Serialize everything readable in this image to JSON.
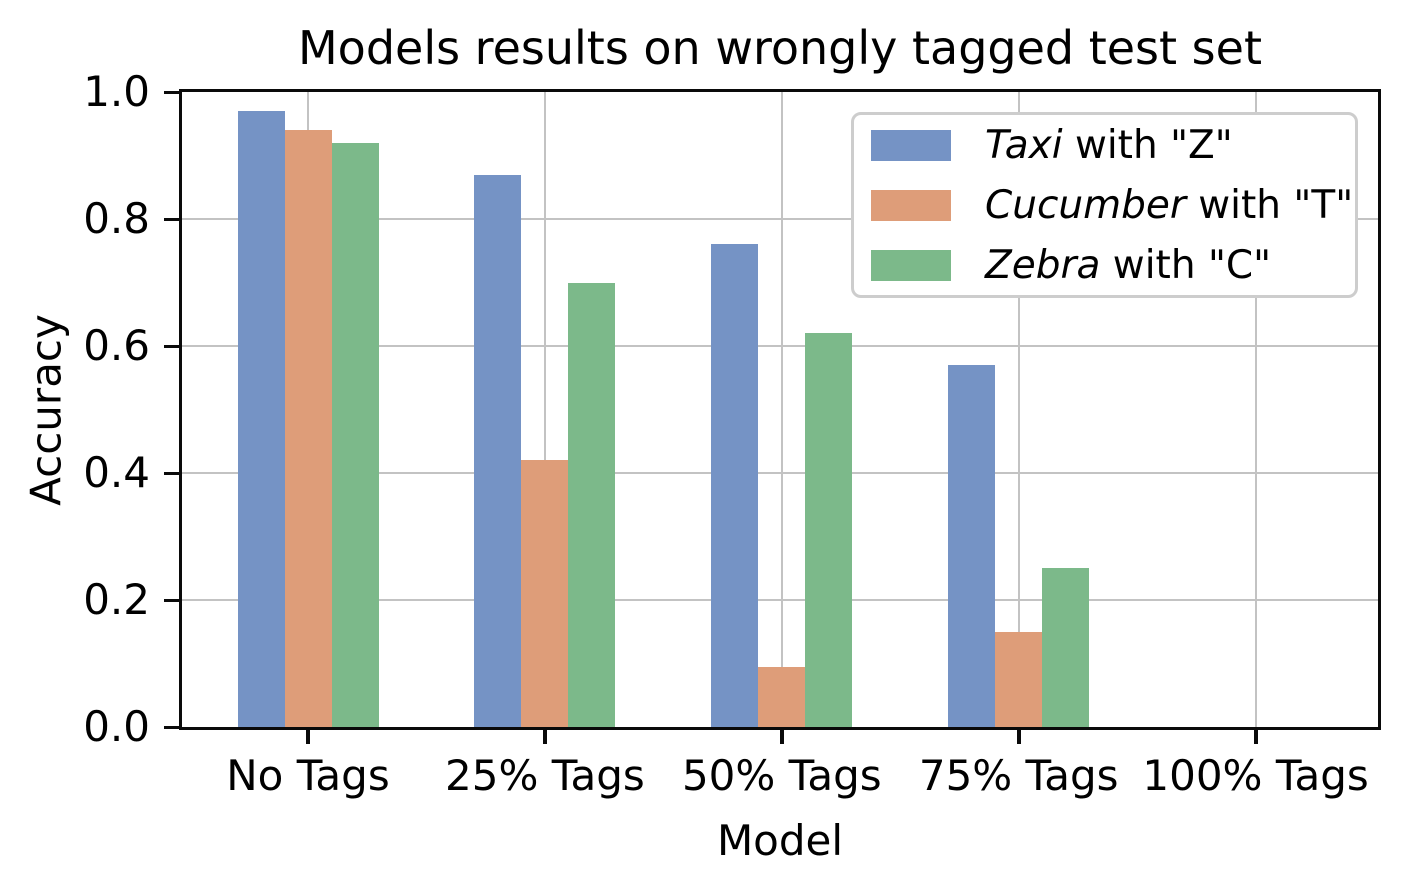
{
  "chart_data": {
    "type": "bar",
    "title": "Models results on wrongly tagged test set",
    "xlabel": "Model",
    "ylabel": "Accuracy",
    "categories": [
      "No Tags",
      "25% Tags",
      "50% Tags",
      "75% Tags",
      "100% Tags"
    ],
    "series": [
      {
        "label_italic": "Taxi",
        "label_rest": " with \"Z\"",
        "color": "#7593c5",
        "values": [
          0.97,
          0.87,
          0.76,
          0.57,
          0.0
        ]
      },
      {
        "label_italic": "Cucumber",
        "label_rest": " with \"T\"",
        "color": "#de9d79",
        "values": [
          0.94,
          0.42,
          0.095,
          0.15,
          0.0
        ]
      },
      {
        "label_italic": "Zebra",
        "label_rest": " with \"C\"",
        "color": "#7cb98a",
        "values": [
          0.92,
          0.7,
          0.62,
          0.25,
          0.0
        ]
      }
    ],
    "ylim": [
      0.0,
      1.0
    ],
    "ytick_labels": [
      "1.0",
      "0.8",
      "0.6",
      "0.4",
      "0.2",
      "0.0"
    ],
    "ytick_values": [
      1.0,
      0.8,
      0.6,
      0.4,
      0.2,
      0.0
    ],
    "grid": "on",
    "legend_position": "upper right"
  },
  "colors": {
    "background": "#ffffff",
    "text": "#000000",
    "spine": "#0a0a0a",
    "gridline": "#c3c3c3",
    "legend_border": "#cdcdcd"
  }
}
